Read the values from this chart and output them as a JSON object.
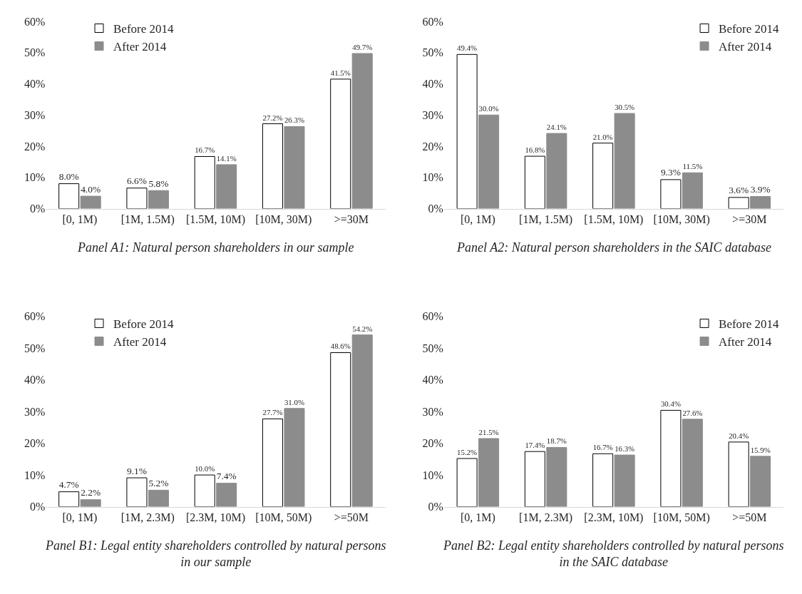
{
  "chart_data": [
    {
      "type": "bar",
      "title": "Panel A1: Natural person shareholders in our sample",
      "categories": [
        "[0, 1M)",
        "[1M, 1.5M)",
        "[1.5M, 10M)",
        "[10M, 30M)",
        ">=30M"
      ],
      "series": [
        {
          "name": "Before 2014",
          "color": "#ffffff",
          "values": [
            8.0,
            6.6,
            16.7,
            27.2,
            41.5
          ],
          "value_labels": [
            "8.0%",
            "6.6%",
            "16.7%",
            "27.2%",
            "41.5%"
          ]
        },
        {
          "name": "After 2014",
          "color": "#8c8c8c",
          "values": [
            4.0,
            5.8,
            14.1,
            26.3,
            49.7
          ],
          "value_labels": [
            "4.0%",
            "5.8%",
            "14.1%",
            "26.3%",
            "49.7%"
          ]
        }
      ],
      "ylim": [
        0,
        60
      ],
      "yticks": [
        {
          "value": 0,
          "label": "0%"
        },
        {
          "value": 10,
          "label": "10%"
        },
        {
          "value": 20,
          "label": "20%"
        },
        {
          "value": 30,
          "label": "30%"
        },
        {
          "value": 40,
          "label": "40%"
        },
        {
          "value": 50,
          "label": "50%"
        },
        {
          "value": 60,
          "label": "60%"
        }
      ],
      "legend": "top left",
      "grid": false
    },
    {
      "type": "bar",
      "title": "Panel A2: Natural person shareholders in the SAIC database",
      "categories": [
        "[0, 1M)",
        "[1M, 1.5M)",
        "[1.5M, 10M)",
        "[10M, 30M)",
        ">=30M"
      ],
      "series": [
        {
          "name": "Before 2014",
          "color": "#ffffff",
          "values": [
            49.4,
            16.8,
            21.0,
            9.3,
            3.6
          ],
          "value_labels": [
            "49.4%",
            "16.8%",
            "21.0%",
            "9.3%",
            "3.6%"
          ]
        },
        {
          "name": "After 2014",
          "color": "#8c8c8c",
          "values": [
            30.0,
            24.1,
            30.5,
            11.5,
            3.9
          ],
          "value_labels": [
            "30.0%",
            "24.1%",
            "30.5%",
            "11.5%",
            "3.9%"
          ]
        }
      ],
      "ylim": [
        0,
        60
      ],
      "yticks": [
        {
          "value": 0,
          "label": "0%"
        },
        {
          "value": 10,
          "label": "10%"
        },
        {
          "value": 20,
          "label": "20%"
        },
        {
          "value": 30,
          "label": "30%"
        },
        {
          "value": 40,
          "label": "40%"
        },
        {
          "value": 50,
          "label": "50%"
        },
        {
          "value": 60,
          "label": "60%"
        }
      ],
      "legend": "top right",
      "grid": false
    },
    {
      "type": "bar",
      "title": "Panel B1: Legal entity shareholders controlled by natural persons\nin our sample",
      "categories": [
        "[0, 1M)",
        "[1M, 2.3M)",
        "[2.3M, 10M)",
        "[10M, 50M)",
        ">=50M"
      ],
      "series": [
        {
          "name": "Before 2014",
          "color": "#ffffff",
          "values": [
            4.7,
            9.1,
            10.0,
            27.7,
            48.6
          ],
          "value_labels": [
            "4.7%",
            "9.1%",
            "10.0%",
            "27.7%",
            "48.6%"
          ]
        },
        {
          "name": "After 2014",
          "color": "#8c8c8c",
          "values": [
            2.2,
            5.2,
            7.4,
            31.0,
            54.2
          ],
          "value_labels": [
            "2.2%",
            "5.2%",
            "7.4%",
            "31.0%",
            "54.2%"
          ]
        }
      ],
      "ylim": [
        0,
        60
      ],
      "yticks": [
        {
          "value": 0,
          "label": "0%"
        },
        {
          "value": 10,
          "label": "10%"
        },
        {
          "value": 20,
          "label": "20%"
        },
        {
          "value": 30,
          "label": "30%"
        },
        {
          "value": 40,
          "label": "40%"
        },
        {
          "value": 50,
          "label": "50%"
        },
        {
          "value": 60,
          "label": "60%"
        }
      ],
      "legend": "top left",
      "grid": false
    },
    {
      "type": "bar",
      "title": "Panel B2: Legal entity shareholders controlled by natural persons\nin the SAIC database",
      "categories": [
        "[0, 1M)",
        "[1M, 2.3M)",
        "[2.3M, 10M)",
        "[10M, 50M)",
        ">=50M"
      ],
      "series": [
        {
          "name": "Before 2014",
          "color": "#ffffff",
          "values": [
            15.2,
            17.4,
            16.7,
            30.4,
            20.4
          ],
          "value_labels": [
            "15.2%",
            "17.4%",
            "16.7%",
            "30.4%",
            "20.4%"
          ]
        },
        {
          "name": "After 2014",
          "color": "#8c8c8c",
          "values": [
            21.5,
            18.7,
            16.3,
            27.6,
            15.9
          ],
          "value_labels": [
            "21.5%",
            "18.7%",
            "16.3%",
            "27.6%",
            "15.9%"
          ]
        }
      ],
      "ylim": [
        0,
        60
      ],
      "yticks": [
        {
          "value": 0,
          "label": "0%"
        },
        {
          "value": 10,
          "label": "10%"
        },
        {
          "value": 20,
          "label": "20%"
        },
        {
          "value": 30,
          "label": "30%"
        },
        {
          "value": 40,
          "label": "40%"
        },
        {
          "value": 50,
          "label": "50%"
        },
        {
          "value": 60,
          "label": "60%"
        }
      ],
      "legend": "top right",
      "grid": false
    }
  ]
}
